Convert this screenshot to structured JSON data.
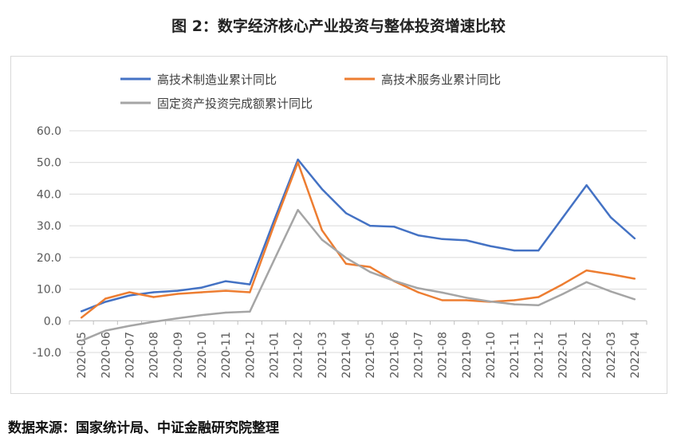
{
  "title": "图 2：数字经济核心产业投资与整体投资增速比较",
  "source": "数据来源：国家统计局、中证金融研究院整理",
  "colors": {
    "series1": "#4472C4",
    "series2": "#ED7D31",
    "series3": "#A5A5A5",
    "grid": "#d9d9d9",
    "axis_text": "#595959"
  },
  "chart_data": {
    "type": "line",
    "legend_position": "top",
    "grid": true,
    "ylim": [
      -10,
      60
    ],
    "yticks": [
      "60.0",
      "50.0",
      "40.0",
      "30.0",
      "20.0",
      "10.0",
      "0.0",
      "-10.0"
    ],
    "categories": [
      "2020-05",
      "2020-06",
      "2020-07",
      "2020-08",
      "2020-09",
      "2020-10",
      "2020-11",
      "2020-12",
      "2021-01",
      "2021-02",
      "2021-03",
      "2021-04",
      "2021-05",
      "2021-06",
      "2021-07",
      "2021-08",
      "2021-09",
      "2021-10",
      "2021-11",
      "2021-12",
      "2022-01",
      "2022-02",
      "2022-03",
      "2022-04"
    ],
    "series": [
      {
        "name": "高技术制造业累计同比",
        "color": "#4472C4",
        "values": [
          3.0,
          6.0,
          8.0,
          9.0,
          9.5,
          10.5,
          12.5,
          11.5,
          31.5,
          50.9,
          41.6,
          34.0,
          30.0,
          29.7,
          27.0,
          25.8,
          25.4,
          23.6,
          22.2,
          22.2,
          32.5,
          42.8,
          32.7,
          26.0
        ]
      },
      {
        "name": "高技术服务业累计同比",
        "color": "#ED7D31",
        "values": [
          1.0,
          7.0,
          9.0,
          7.5,
          8.5,
          9.0,
          9.5,
          9.0,
          30.0,
          50.0,
          28.6,
          18.0,
          17.0,
          12.5,
          9.0,
          6.5,
          6.5,
          6.0,
          6.5,
          7.5,
          11.5,
          15.9,
          14.7,
          13.3
        ]
      },
      {
        "name": "固定资产投资完成额累计同比",
        "color": "#A5A5A5",
        "values": [
          -6.3,
          -3.1,
          -1.6,
          -0.3,
          0.8,
          1.8,
          2.6,
          2.9,
          19.0,
          35.0,
          25.6,
          19.9,
          15.4,
          12.6,
          10.3,
          8.9,
          7.3,
          6.1,
          5.2,
          4.9,
          8.4,
          12.2,
          9.3,
          6.8
        ]
      }
    ]
  }
}
